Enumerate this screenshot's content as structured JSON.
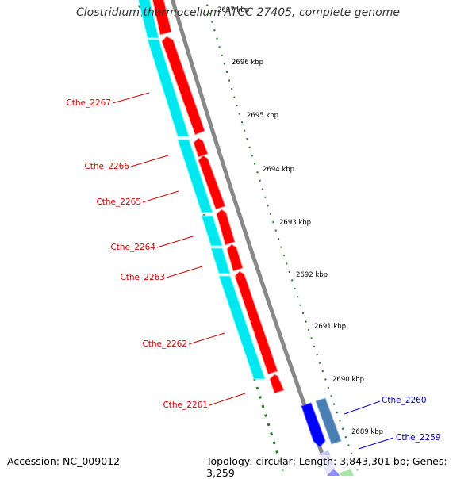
{
  "title": "Clostridium thermocellum ATCC 27405, complete genome",
  "footer": {
    "accession": "Accession: NC_009012",
    "info": "Topology: circular; Length: 3,843,301 bp; Genes: 3,259"
  },
  "colors": {
    "reverse_cds": "#ff0000",
    "reverse_label": "#cc0000",
    "forward_cds": "#0000ff",
    "forward_label": "#0000cc",
    "cyan_track": "#00e8ef",
    "steelblue_track": "#4a7fb3",
    "lavender_track": "#c8c8f0",
    "green_track": "#33cc33",
    "backbone": "#888888",
    "tick_green": "#1e7a1e"
  },
  "scale_labels": [
    "2697 kbp",
    "2696 kbp",
    "2695 kbp",
    "2694 kbp",
    "2693 kbp",
    "2692 kbp",
    "2691 kbp",
    "2690 kbp",
    "2689 kbp"
  ],
  "genes_reverse": [
    "Cthe_2267",
    "Cthe_2266",
    "Cthe_2265",
    "Cthe_2264",
    "Cthe_2263",
    "Cthe_2262",
    "Cthe_2261"
  ],
  "genes_forward": [
    "Cthe_2260",
    "Cthe_2259"
  ]
}
